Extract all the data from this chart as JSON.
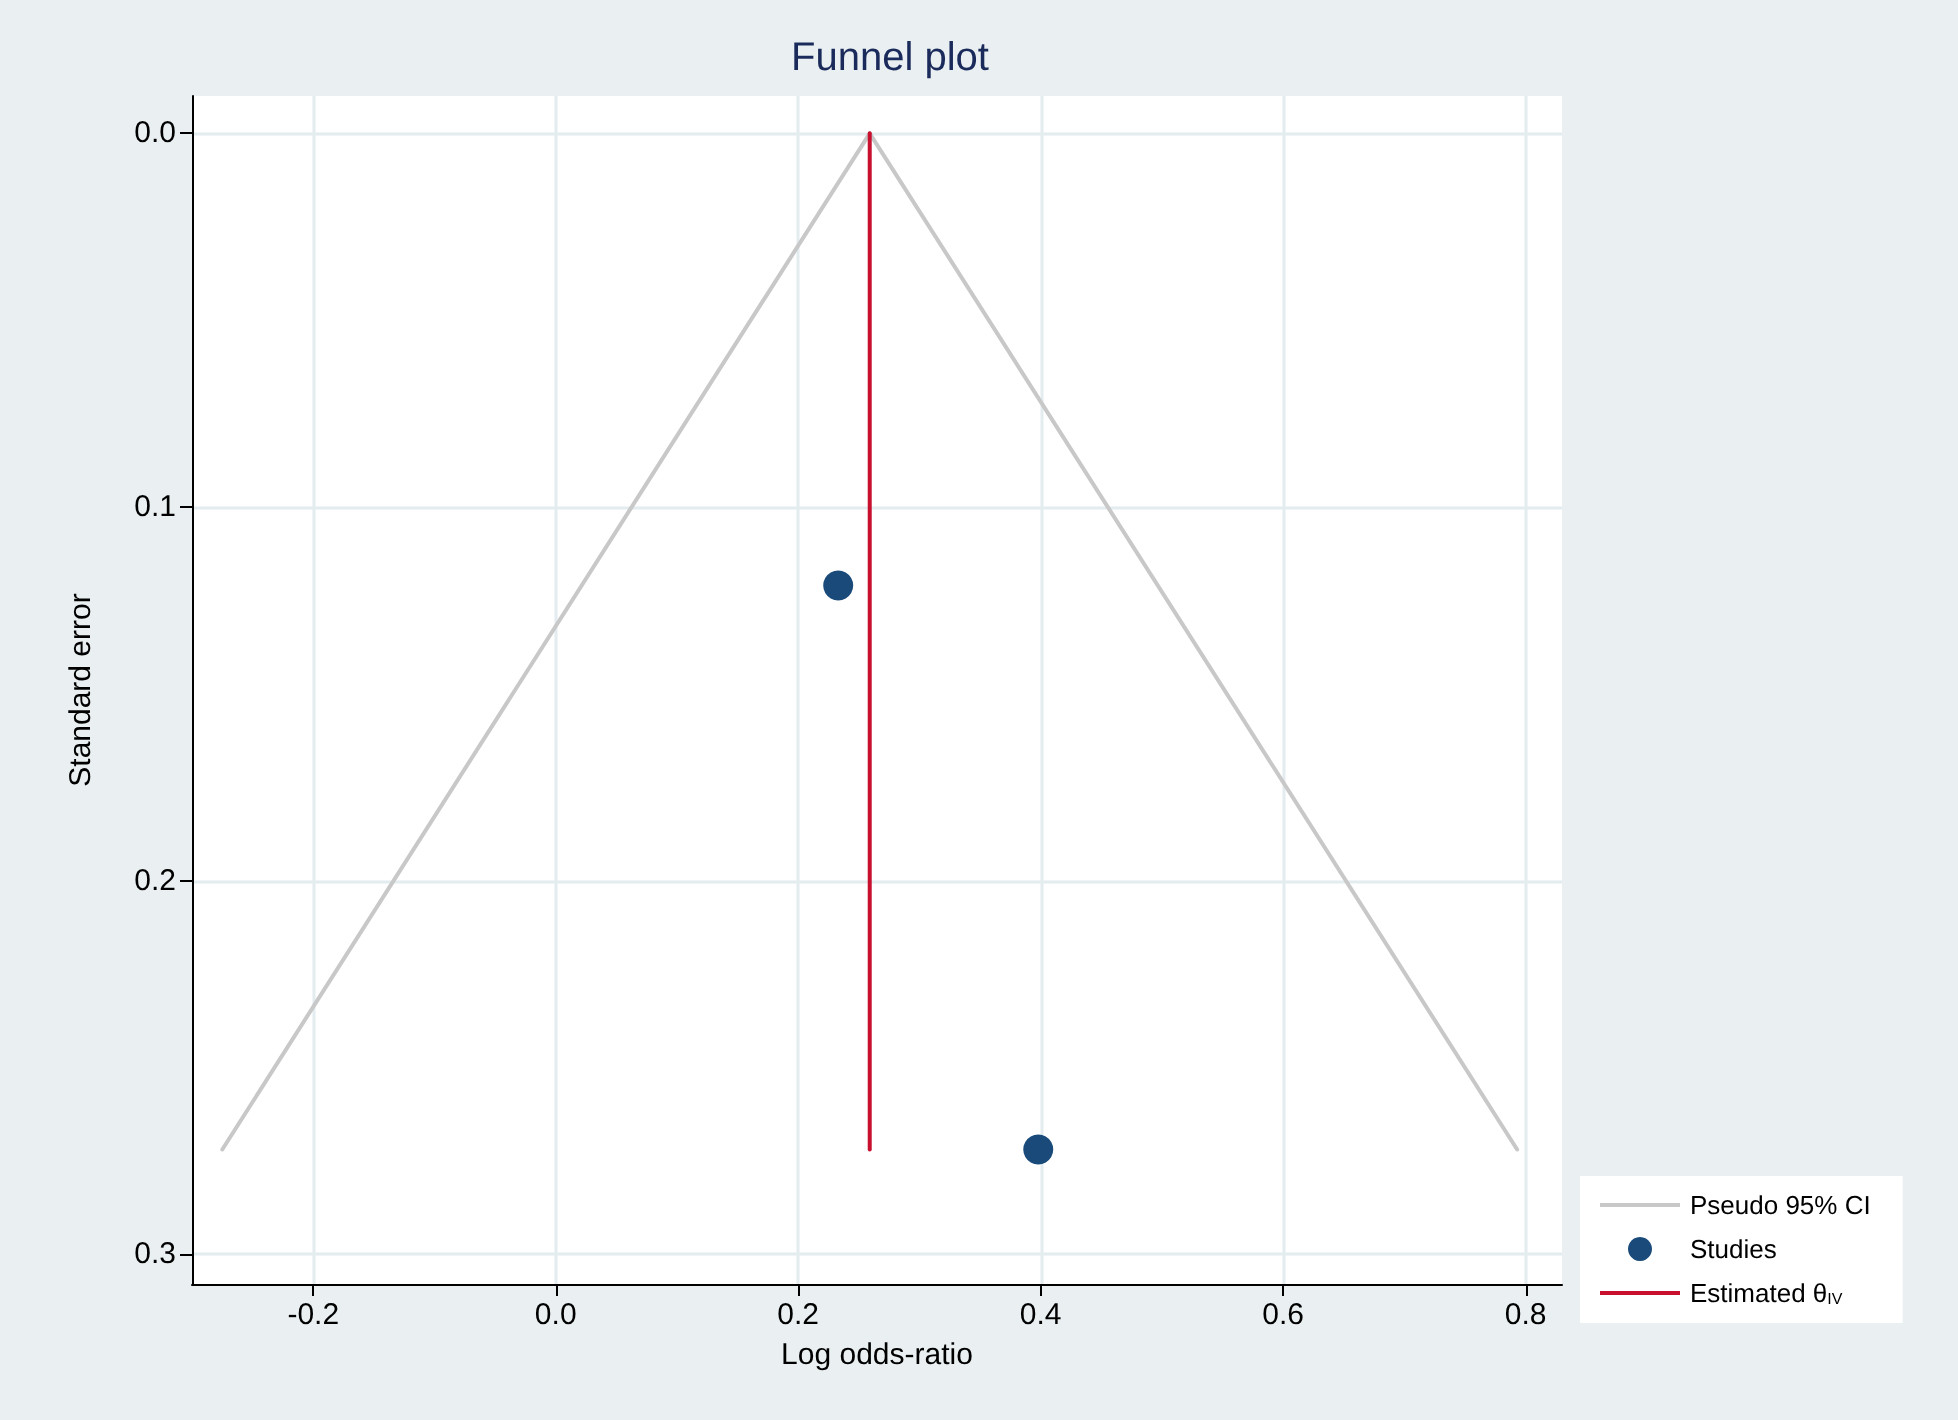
{
  "chart_data": {
    "type": "line",
    "title": "Funnel plot",
    "xlabel": "Log odds-ratio",
    "ylabel": "Standard error",
    "xlim": [
      -0.3,
      0.83
    ],
    "xticks": [
      -0.2,
      {
        "value": 0,
        "label": "0.0"
      },
      0.2,
      0.4,
      0.6,
      0.8
    ],
    "ylim": [
      0.308,
      -0.01
    ],
    "yticks": [
      {
        "value": 0,
        "label": "0.0"
      },
      0.1,
      0.2,
      0.3
    ],
    "grid": true,
    "legend": "bottom right",
    "series": [
      {
        "name": "Pseudo 95% CI",
        "color": "#c8c8c8",
        "x": [
          -0.275,
          0.259,
          0.793
        ],
        "values": [
          0.272,
          0,
          0.272
        ],
        "marker": "none",
        "line_style": "solid"
      },
      {
        "name": "Studies",
        "type": "scatter",
        "color": "#1a4a7a",
        "x": [
          0.233,
          0.398
        ],
        "values": [
          0.121,
          0.272
        ],
        "marker": "circle"
      },
      {
        "name": "Estimated θ$_{IV}$",
        "color": "#c8102e",
        "x": [
          0.259,
          0.259
        ],
        "values": [
          0,
          0.272
        ],
        "marker": "none",
        "line_style": "solid"
      }
    ]
  }
}
